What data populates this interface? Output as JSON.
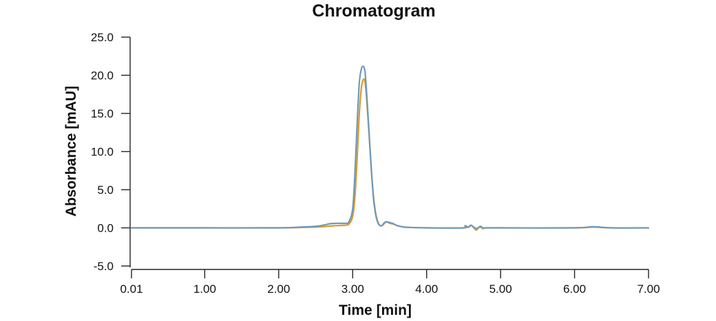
{
  "chart_data": {
    "type": "line",
    "title": "Chromatogram",
    "xlabel": "Time [min]",
    "ylabel": "Absorbance [mAU]",
    "xlim": [
      0.01,
      7.0
    ],
    "ylim": [
      -5.0,
      25.0
    ],
    "x_ticks": [
      0.01,
      1.0,
      2.0,
      3.0,
      4.0,
      5.0,
      6.0,
      7.0
    ],
    "x_tick_labels": [
      "0.01",
      "1.00",
      "2.00",
      "3.00",
      "4.00",
      "5.00",
      "6.00",
      "7.00"
    ],
    "y_ticks": [
      -5.0,
      0.0,
      5.0,
      10.0,
      15.0,
      20.0,
      25.0
    ],
    "y_tick_labels": [
      "-5.0",
      "0.0",
      "5.0",
      "10.0",
      "15.0",
      "20.0",
      "25.0"
    ],
    "grid": false,
    "legend": "none",
    "series": [
      {
        "color": "#d89a2b",
        "x": [
          0.01,
          1.0,
          2.0,
          2.3,
          2.5,
          2.6,
          2.7,
          2.8,
          2.9,
          2.95,
          3.0,
          3.03,
          3.06,
          3.09,
          3.12,
          3.15,
          3.17,
          3.19,
          3.22,
          3.25,
          3.28,
          3.31,
          3.34,
          3.37,
          3.4,
          3.43,
          3.46,
          3.5,
          3.55,
          3.6,
          3.7,
          3.8,
          4.0,
          4.5,
          4.52,
          4.56,
          4.6,
          4.63,
          4.67,
          4.7,
          4.73,
          4.76,
          4.8,
          5.0,
          6.0,
          6.25,
          6.5,
          7.0
        ],
        "y": [
          0.0,
          0.0,
          0.0,
          0.05,
          0.1,
          0.15,
          0.25,
          0.3,
          0.35,
          0.5,
          1.5,
          4.0,
          9.0,
          15.0,
          18.5,
          19.5,
          18.9,
          16.8,
          12.5,
          8.0,
          4.3,
          2.0,
          0.8,
          0.3,
          0.3,
          0.6,
          0.8,
          0.6,
          0.5,
          0.3,
          0.1,
          0.05,
          0.0,
          0.0,
          0.2,
          0.05,
          0.3,
          0.1,
          -0.3,
          0.0,
          0.1,
          -0.1,
          0.0,
          0.0,
          0.0,
          0.1,
          0.0,
          0.0
        ]
      },
      {
        "color": "#6e99bd",
        "x": [
          0.01,
          1.0,
          2.0,
          2.3,
          2.5,
          2.6,
          2.7,
          2.8,
          2.9,
          2.95,
          3.0,
          3.03,
          3.06,
          3.09,
          3.12,
          3.15,
          3.17,
          3.19,
          3.22,
          3.25,
          3.28,
          3.31,
          3.34,
          3.37,
          3.4,
          3.43,
          3.46,
          3.5,
          3.55,
          3.6,
          3.7,
          3.8,
          4.0,
          4.5,
          4.52,
          4.56,
          4.6,
          4.63,
          4.67,
          4.7,
          4.73,
          4.76,
          4.8,
          5.0,
          6.0,
          6.25,
          6.5,
          7.0
        ],
        "y": [
          0.0,
          0.0,
          0.0,
          0.1,
          0.2,
          0.35,
          0.55,
          0.6,
          0.6,
          0.8,
          2.5,
          7.0,
          13.5,
          19.0,
          20.9,
          21.1,
          20.2,
          17.5,
          12.8,
          8.0,
          4.0,
          1.8,
          0.7,
          0.3,
          0.35,
          0.7,
          0.8,
          0.7,
          0.55,
          0.3,
          0.1,
          0.05,
          0.0,
          0.0,
          0.3,
          0.1,
          0.35,
          0.15,
          -0.1,
          0.05,
          0.2,
          0.0,
          0.0,
          0.0,
          0.0,
          0.15,
          0.0,
          0.0
        ]
      }
    ]
  }
}
